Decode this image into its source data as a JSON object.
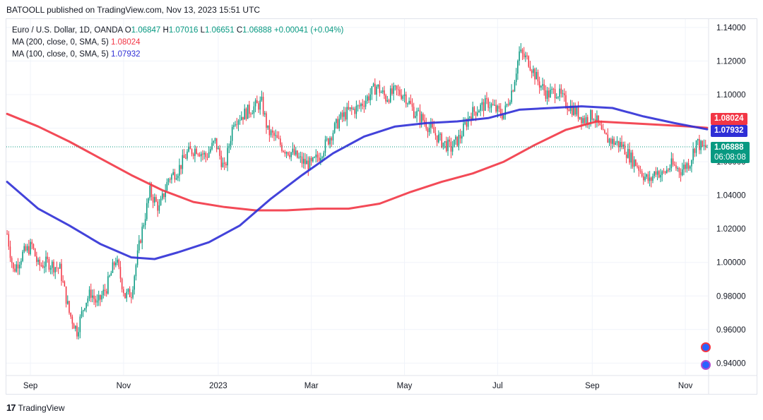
{
  "header": {
    "published": "BATOOLL published on TradingView.com, Nov 13, 2023 15:51 UTC"
  },
  "legend": {
    "symbol": "Euro / U.S. Dollar, 1D, OANDA",
    "open_label": "O",
    "open": "1.06847",
    "high_label": "H",
    "high": "1.07016",
    "low_label": "L",
    "low": "1.06651",
    "close_label": "C",
    "close": "1.06888",
    "change": "+0.00041 (+0.04%)",
    "ma200_label": "MA (200, close, 0, SMA, 5)",
    "ma200_value": "1.08024",
    "ma100_label": "MA (100, close, 0, SMA, 5)",
    "ma100_value": "1.07932"
  },
  "price_badges": {
    "ma200": "1.08024",
    "ma100": "1.07932",
    "last": "1.06888",
    "countdown": "06:08:08"
  },
  "footer": {
    "brand": "TradingView"
  },
  "colors": {
    "up": "#089981",
    "down": "#f23645",
    "ma200": "#f23645",
    "ma100": "#2f2fd6",
    "grid": "#f0f3fa",
    "axis_text": "#131722"
  },
  "chart_data": {
    "type": "line",
    "title": "Euro / U.S. Dollar, 1D, OANDA",
    "ylim": [
      0.933,
      1.145
    ],
    "y_ticks": [
      "1.14000",
      "1.12000",
      "1.10000",
      "1.08000",
      "1.06000",
      "1.04000",
      "1.02000",
      "1.00000",
      "0.98000",
      "0.96000",
      "0.94000"
    ],
    "y_tick_values": [
      1.14,
      1.12,
      1.1,
      1.08,
      1.06,
      1.04,
      1.02,
      1.0,
      0.98,
      0.96,
      0.94
    ],
    "x_ticks": [
      "Sep",
      "Nov",
      "2023",
      "Mar",
      "May",
      "Jul",
      "Sep",
      "Nov"
    ],
    "x_tick_index": [
      15,
      75,
      136,
      196,
      256,
      316,
      377,
      437
    ],
    "bar_count": 452,
    "price_path": [
      [
        0,
        1.017
      ],
      [
        4,
        0.995
      ],
      [
        10,
        1.005
      ],
      [
        16,
        1.01
      ],
      [
        20,
        0.998
      ],
      [
        26,
        1.0
      ],
      [
        34,
        0.996
      ],
      [
        40,
        0.97
      ],
      [
        45,
        0.959
      ],
      [
        50,
        0.976
      ],
      [
        54,
        0.982
      ],
      [
        58,
        0.975
      ],
      [
        64,
        0.985
      ],
      [
        70,
        1.002
      ],
      [
        76,
        0.98
      ],
      [
        80,
        0.982
      ],
      [
        86,
        1.015
      ],
      [
        92,
        1.042
      ],
      [
        98,
        1.032
      ],
      [
        104,
        1.05
      ],
      [
        110,
        1.055
      ],
      [
        116,
        1.065
      ],
      [
        122,
        1.068
      ],
      [
        128,
        1.063
      ],
      [
        134,
        1.072
      ],
      [
        140,
        1.055
      ],
      [
        146,
        1.085
      ],
      [
        152,
        1.088
      ],
      [
        158,
        1.092
      ],
      [
        164,
        1.095
      ],
      [
        168,
        1.078
      ],
      [
        172,
        1.075
      ],
      [
        178,
        1.068
      ],
      [
        184,
        1.065
      ],
      [
        190,
        1.06
      ],
      [
        196,
        1.058
      ],
      [
        202,
        1.065
      ],
      [
        208,
        1.075
      ],
      [
        214,
        1.085
      ],
      [
        220,
        1.09
      ],
      [
        226,
        1.092
      ],
      [
        232,
        1.098
      ],
      [
        238,
        1.105
      ],
      [
        244,
        1.098
      ],
      [
        250,
        1.102
      ],
      [
        256,
        1.1
      ],
      [
        262,
        1.09
      ],
      [
        268,
        1.085
      ],
      [
        274,
        1.078
      ],
      [
        280,
        1.072
      ],
      [
        286,
        1.068
      ],
      [
        292,
        1.075
      ],
      [
        298,
        1.088
      ],
      [
        304,
        1.092
      ],
      [
        310,
        1.095
      ],
      [
        316,
        1.09
      ],
      [
        320,
        1.088
      ],
      [
        326,
        1.105
      ],
      [
        330,
        1.125
      ],
      [
        336,
        1.12
      ],
      [
        342,
        1.108
      ],
      [
        348,
        1.1
      ],
      [
        354,
        1.102
      ],
      [
        360,
        1.095
      ],
      [
        366,
        1.09
      ],
      [
        372,
        1.085
      ],
      [
        378,
        1.088
      ],
      [
        384,
        1.075
      ],
      [
        390,
        1.072
      ],
      [
        396,
        1.07
      ],
      [
        402,
        1.062
      ],
      [
        406,
        1.058
      ],
      [
        410,
        1.052
      ],
      [
        414,
        1.048
      ],
      [
        418,
        1.055
      ],
      [
        422,
        1.052
      ],
      [
        428,
        1.058
      ],
      [
        434,
        1.055
      ],
      [
        440,
        1.06
      ],
      [
        444,
        1.072
      ],
      [
        448,
        1.068
      ],
      [
        451,
        1.069
      ]
    ],
    "series": [
      {
        "name": "MA (200, close, 0, SMA, 5)",
        "path": [
          [
            0,
            1.0885
          ],
          [
            20,
            1.081
          ],
          [
            40,
            1.072
          ],
          [
            60,
            1.062
          ],
          [
            80,
            1.052
          ],
          [
            100,
            1.043
          ],
          [
            120,
            1.036
          ],
          [
            140,
            1.033
          ],
          [
            160,
            1.031
          ],
          [
            180,
            1.031
          ],
          [
            200,
            1.032
          ],
          [
            220,
            1.032
          ],
          [
            240,
            1.035
          ],
          [
            260,
            1.042
          ],
          [
            280,
            1.048
          ],
          [
            300,
            1.053
          ],
          [
            320,
            1.06
          ],
          [
            340,
            1.07
          ],
          [
            360,
            1.079
          ],
          [
            380,
            1.084
          ],
          [
            400,
            1.083
          ],
          [
            420,
            1.082
          ],
          [
            440,
            1.081
          ],
          [
            451,
            1.0802
          ]
        ]
      },
      {
        "name": "MA (100, close, 0, SMA, 5)",
        "path": [
          [
            0,
            1.048
          ],
          [
            20,
            1.032
          ],
          [
            40,
            1.022
          ],
          [
            60,
            1.011
          ],
          [
            80,
            1.003
          ],
          [
            95,
            1.002
          ],
          [
            110,
            1.006
          ],
          [
            130,
            1.012
          ],
          [
            150,
            1.022
          ],
          [
            170,
            1.038
          ],
          [
            190,
            1.052
          ],
          [
            210,
            1.065
          ],
          [
            230,
            1.075
          ],
          [
            250,
            1.081
          ],
          [
            270,
            1.083
          ],
          [
            290,
            1.084
          ],
          [
            310,
            1.086
          ],
          [
            330,
            1.091
          ],
          [
            350,
            1.092
          ],
          [
            370,
            1.093
          ],
          [
            390,
            1.092
          ],
          [
            410,
            1.087
          ],
          [
            430,
            1.083
          ],
          [
            451,
            1.0793
          ]
        ]
      }
    ]
  }
}
